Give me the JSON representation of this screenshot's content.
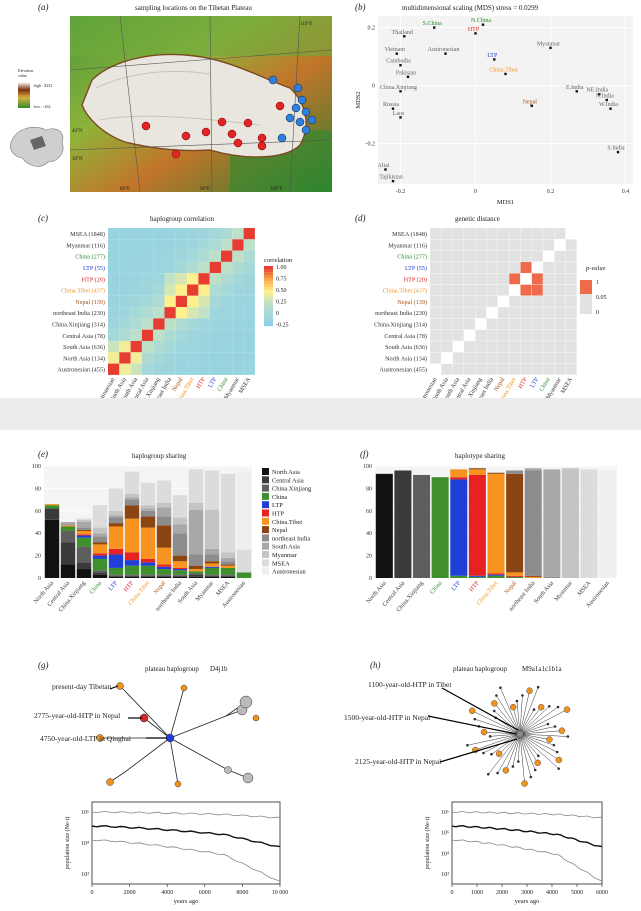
{
  "panels": {
    "a": {
      "label": "(a)",
      "title": "sampling locations on the Tibetan Plateau",
      "legend_title": "Elevation\nvalue",
      "legend_high": "high : 8252",
      "legend_low": "low : -432",
      "lon_ticks": [
        "80°E",
        "90°E",
        "100°E",
        "110°E"
      ],
      "lat_ticks": [
        "40°N",
        "30°N"
      ]
    },
    "b": {
      "label": "(b)",
      "title": "multidimensional scaling (MDS) stress = 0.0299",
      "xlabel": "MDS1",
      "ylabel": "MDS2",
      "chart_data": {
        "type": "scatter",
        "title": "multidimensional scaling (MDS) stress = 0.0299",
        "xlabel": "MDS1",
        "ylabel": "MDS2",
        "xlim": [
          -0.26,
          0.42
        ],
        "ylim": [
          -0.34,
          0.24
        ],
        "xticks": [
          "-0.2",
          "0",
          "0.2",
          "0.4"
        ],
        "yticks": [
          "0.2",
          "0",
          "-0.2"
        ],
        "points": [
          {
            "name": "N.China",
            "x": 0.02,
            "y": 0.21,
            "color": "#2e8b2e"
          },
          {
            "name": "S.China",
            "x": -0.11,
            "y": 0.2,
            "color": "#2e8b2e"
          },
          {
            "name": "HTP",
            "x": 0.0,
            "y": 0.18,
            "color": "#d62728"
          },
          {
            "name": "Thailand",
            "x": -0.19,
            "y": 0.17,
            "color": "#666"
          },
          {
            "name": "Vietnam",
            "x": -0.21,
            "y": 0.11,
            "color": "#666"
          },
          {
            "name": "Austronesian",
            "x": -0.08,
            "y": 0.11,
            "color": "#666"
          },
          {
            "name": "Cambodia",
            "x": -0.2,
            "y": 0.07,
            "color": "#666"
          },
          {
            "name": "Myanmar",
            "x": 0.2,
            "y": 0.13,
            "color": "#666"
          },
          {
            "name": "LTP",
            "x": 0.05,
            "y": 0.09,
            "color": "#1f3fd6"
          },
          {
            "name": "China.Tibet",
            "x": 0.08,
            "y": 0.04,
            "color": "#f0941e"
          },
          {
            "name": "Pakistan",
            "x": -0.18,
            "y": 0.03,
            "color": "#666"
          },
          {
            "name": "China.Xinjiang",
            "x": -0.2,
            "y": -0.02,
            "color": "#666"
          },
          {
            "name": "E.India",
            "x": 0.27,
            "y": -0.02,
            "color": "#666"
          },
          {
            "name": "NE.India",
            "x": 0.33,
            "y": -0.03,
            "color": "#666"
          },
          {
            "name": "N.India",
            "x": 0.35,
            "y": -0.05,
            "color": "#666"
          },
          {
            "name": "W.India",
            "x": 0.36,
            "y": -0.08,
            "color": "#666"
          },
          {
            "name": "Nepal",
            "x": 0.15,
            "y": -0.07,
            "color": "#a0521a"
          },
          {
            "name": "Russia",
            "x": -0.22,
            "y": -0.08,
            "color": "#666"
          },
          {
            "name": "Laos",
            "x": -0.2,
            "y": -0.11,
            "color": "#666"
          },
          {
            "name": "S.India",
            "x": 0.38,
            "y": -0.23,
            "color": "#666"
          },
          {
            "name": "Altai",
            "x": -0.24,
            "y": -0.29,
            "color": "#666"
          },
          {
            "name": "Tajikistan",
            "x": -0.22,
            "y": -0.33,
            "color": "#666"
          }
        ]
      }
    },
    "c": {
      "label": "(c)",
      "title": "haplogroup correlation",
      "legend_title": "correlation",
      "legend_ticks": [
        "1.00",
        "0.75",
        "0.50",
        "0.25",
        "0",
        "-0.25"
      ],
      "chart_data": {
        "type": "heatmap",
        "title": "haplogroup correlation",
        "rows": [
          "MSEA (1848)",
          "Myanmar (116)",
          "China (277)",
          "LTP (55)",
          "HTP (20)",
          "China.Tibet (437)",
          "Nepal (139)",
          "northeast India (230)",
          "China.Xinjiang (314)",
          "Central Asia (78)",
          "South Asia (636)",
          "North Asia (134)",
          "Austronesian (455)"
        ],
        "row_colors": [
          "#333",
          "#333",
          "#2e8b2e",
          "#1f3fd6",
          "#d62728",
          "#f0941e",
          "#a0521a",
          "#333",
          "#333",
          "#333",
          "#333",
          "#333",
          "#333"
        ],
        "cols": [
          "Austronesian",
          "North Asia",
          "South Asia",
          "Central Asia",
          "China.Xinjiang",
          "northeast India",
          "Nepal",
          "China.Tibet",
          "HTP",
          "LTP",
          "China",
          "Myanmar",
          "MSEA"
        ],
        "col_colors": [
          "#333",
          "#333",
          "#333",
          "#333",
          "#333",
          "#333",
          "#a0521a",
          "#f0941e",
          "#d62728",
          "#1f3fd6",
          "#2e8b2e",
          "#333",
          "#333"
        ]
      }
    },
    "d": {
      "label": "(d)",
      "title": "genetic distance",
      "legend_title": "p-value",
      "legend_ticks": [
        "1",
        "0.05",
        "0"
      ],
      "rows": [
        "MSEA (1848)",
        "Myanmar (116)",
        "China (277)",
        "LTP (55)",
        "HTP (20)",
        "China.Tibet (437)",
        "Nepal (139)",
        "northeast India (230)",
        "China.Xinjiang (314)",
        "Central Asia (78)",
        "South Asia (636)",
        "North Asia (134)",
        "Austronesian (455)"
      ],
      "row_colors": [
        "#333",
        "#333",
        "#2e8b2e",
        "#1f3fd6",
        "#d62728",
        "#f0941e",
        "#a0521a",
        "#333",
        "#333",
        "#333",
        "#333",
        "#333",
        "#333"
      ],
      "cols": [
        "Austronesian",
        "North Asia",
        "South Asia",
        "Central Asia",
        "China.Xinjiang",
        "northeast India",
        "Nepal",
        "China.Tibet",
        "HTP",
        "LTP",
        "China",
        "Myanmar",
        "MSEA"
      ],
      "col_colors": [
        "#333",
        "#333",
        "#333",
        "#333",
        "#333",
        "#333",
        "#a0521a",
        "#f0941e",
        "#d62728",
        "#1f3fd6",
        "#2e8b2e",
        "#333",
        "#333"
      ]
    },
    "e": {
      "label": "(e)",
      "title": "haplogroup sharing",
      "chart_data": {
        "type": "bar",
        "stacked": true,
        "title": "haplogroup sharing",
        "ylim": [
          0,
          100
        ],
        "yticks": [
          "100",
          "80",
          "60",
          "40",
          "20",
          "0"
        ],
        "categories": [
          "North Asia",
          "Central Asia",
          "China.Xinjiang",
          "China",
          "LTP",
          "HTP",
          "China.Tibet",
          "Nepal",
          "northeast India",
          "South Asia",
          "Myanmar",
          "MSEA",
          "Austronesian"
        ],
        "category_colors": [
          "#333",
          "#333",
          "#333",
          "#2e8b2e",
          "#1f3fd6",
          "#d62728",
          "#f0941e",
          "#a0521a",
          "#333",
          "#333",
          "#333",
          "#333",
          "#333"
        ],
        "series": [
          {
            "name": "North Asia",
            "color": "#111111",
            "values": [
              52,
              12,
              8,
              3,
              1,
              1,
              1,
              1,
              1,
              1,
              1,
              1,
              0
            ]
          },
          {
            "name": "Central Asia",
            "color": "#3a3a3a",
            "values": [
              10,
              20,
              6,
              2,
              1,
              1,
              1,
              1,
              1,
              2,
              1,
              1,
              0
            ]
          },
          {
            "name": "China.Xinjiang",
            "color": "#5e5e5e",
            "values": [
              0,
              10,
              14,
              2,
              1,
              1,
              1,
              1,
              1,
              1,
              1,
              1,
              0
            ]
          },
          {
            "name": "China",
            "color": "#3f8f2f",
            "values": [
              3,
              4,
              8,
              10,
              6,
              8,
              8,
              5,
              4,
              2,
              6,
              6,
              5
            ]
          },
          {
            "name": "LTP",
            "color": "#1f3fd6",
            "values": [
              0,
              0,
              2,
              3,
              12,
              5,
              3,
              2,
              1,
              0,
              1,
              0,
              0
            ]
          },
          {
            "name": "HTP",
            "color": "#e62222",
            "values": [
              0,
              0,
              1,
              2,
              5,
              7,
              3,
              2,
              1,
              0,
              0,
              0,
              0
            ]
          },
          {
            "name": "China.Tibet",
            "color": "#f7931e",
            "values": [
              1,
              1,
              3,
              8,
              20,
              30,
              28,
              15,
              6,
              2,
              3,
              2,
              0
            ]
          },
          {
            "name": "Nepal",
            "color": "#8b4513",
            "values": [
              0,
              0,
              1,
              2,
              3,
              12,
              10,
              20,
              5,
              3,
              2,
              1,
              0
            ]
          },
          {
            "name": "northeast India",
            "color": "#8c8c8c",
            "values": [
              0,
              1,
              2,
              5,
              5,
              5,
              5,
              8,
              20,
              10,
              6,
              3,
              0
            ]
          },
          {
            "name": "South Asia",
            "color": "#a8a8a8",
            "values": [
              0,
              2,
              5,
              3,
              2,
              2,
              2,
              8,
              8,
              40,
              5,
              3,
              0
            ]
          },
          {
            "name": "Myanmar",
            "color": "#c4c4c4",
            "values": [
              0,
              0,
              2,
              5,
              4,
              3,
              3,
              4,
              6,
              6,
              35,
              5,
              0
            ]
          },
          {
            "name": "MSEA",
            "color": "#dcdcdc",
            "values": [
              0,
              0,
              1,
              20,
              20,
              20,
              20,
              20,
              20,
              30,
              35,
              70,
              20
            ]
          },
          {
            "name": "Austronesian",
            "color": "#efefef",
            "values": [
              0,
              0,
              1,
              0,
              0,
              0,
              0,
              0,
              0,
              0,
              0,
              0,
              70
            ]
          }
        ]
      }
    },
    "f": {
      "label": "(f)",
      "title": "haplotype sharing",
      "chart_data": {
        "type": "bar",
        "stacked": true,
        "title": "haplotype sharing",
        "ylim": [
          0,
          100
        ],
        "yticks": [
          "100",
          "80",
          "60",
          "40",
          "20",
          "0"
        ],
        "categories": [
          "North Asia",
          "Central Asia",
          "China.Xinjiang",
          "China",
          "LTP",
          "HTP",
          "China.Tibet",
          "Nepal",
          "northeast India",
          "South Asia",
          "Myanmar",
          "MSEA",
          "Austronesian"
        ],
        "category_colors": [
          "#333",
          "#333",
          "#333",
          "#2e8b2e",
          "#1f3fd6",
          "#d62728",
          "#f0941e",
          "#a0521a",
          "#333",
          "#333",
          "#333",
          "#333",
          "#333"
        ],
        "series": [
          {
            "name": "North Asia",
            "color": "#111111",
            "values": [
              93,
              0,
              0,
              0,
              0,
              0,
              0,
              0,
              0,
              0,
              0,
              0,
              0
            ]
          },
          {
            "name": "Central Asia",
            "color": "#3a3a3a",
            "values": [
              0,
              96,
              0,
              0,
              0,
              0,
              0,
              0,
              0,
              0,
              0,
              0,
              0
            ]
          },
          {
            "name": "China.Xinjiang",
            "color": "#5e5e5e",
            "values": [
              0,
              0,
              92,
              0,
              0,
              0,
              0,
              0,
              0,
              0,
              0,
              0,
              0
            ]
          },
          {
            "name": "China",
            "color": "#3f8f2f",
            "values": [
              0,
              0,
              0,
              90,
              2,
              1,
              2,
              1,
              0,
              0,
              0,
              0,
              0
            ]
          },
          {
            "name": "LTP",
            "color": "#1f3fd6",
            "values": [
              0,
              0,
              0,
              0,
              86,
              1,
              1,
              0,
              0,
              0,
              0,
              0,
              0
            ]
          },
          {
            "name": "HTP",
            "color": "#e62222",
            "values": [
              0,
              0,
              0,
              0,
              2,
              90,
              1,
              1,
              0,
              0,
              0,
              0,
              0
            ]
          },
          {
            "name": "China.Tibet",
            "color": "#f7931e",
            "values": [
              0,
              0,
              0,
              0,
              7,
              5,
              89,
              3,
              1,
              0,
              0,
              0,
              0
            ]
          },
          {
            "name": "Nepal",
            "color": "#8b4513",
            "values": [
              0,
              0,
              0,
              0,
              0,
              1,
              1,
              88,
              1,
              0,
              0,
              0,
              0
            ]
          },
          {
            "name": "northeast India",
            "color": "#8c8c8c",
            "values": [
              0,
              0,
              0,
              0,
              0,
              0,
              0,
              3,
              94,
              1,
              0,
              0,
              0
            ]
          },
          {
            "name": "South Asia",
            "color": "#a8a8a8",
            "values": [
              0,
              0,
              0,
              0,
              0,
              0,
              0,
              0,
              2,
              96,
              0,
              0,
              0
            ]
          },
          {
            "name": "Myanmar",
            "color": "#c4c4c4",
            "values": [
              0,
              0,
              0,
              0,
              0,
              0,
              0,
              0,
              0,
              0,
              98,
              0,
              0
            ]
          },
          {
            "name": "MSEA",
            "color": "#dcdcdc",
            "values": [
              0,
              0,
              0,
              0,
              0,
              0,
              0,
              0,
              0,
              0,
              0,
              97,
              0
            ]
          },
          {
            "name": "Austronesian",
            "color": "#efefef",
            "values": [
              0,
              0,
              0,
              0,
              0,
              0,
              0,
              0,
              0,
              0,
              0,
              0,
              96
            ]
          }
        ]
      }
    },
    "g": {
      "label": "(g)",
      "title_a": "plateau haplogroup",
      "title_b": "D4j1b",
      "ann1": "present-day Tibetan",
      "ann2": "2775-year-old-HTP in Nepal",
      "ann3": "4750-year-old-LTP in Qinghai",
      "xlabel": "years ago",
      "ylabel": "population size (Ne·t)",
      "xticks": [
        "0",
        "2000",
        "4000",
        "6000",
        "8000",
        "10 000"
      ],
      "yticks": [
        "10⁵",
        "10⁴",
        "10³"
      ]
    },
    "h": {
      "label": "(h)",
      "title_a": "plateau haplogroup",
      "title_b": "M9a1a1c1b1a",
      "ann1": "1100-year-old-HTP in Tibet",
      "ann2": "1500-year-old-HTP in Nepal",
      "ann3": "2125-year-old-HTP in Nepal",
      "xlabel": "years ago",
      "ylabel": "population size (Ne·t)",
      "xticks": [
        "0",
        "1000",
        "2000",
        "3000",
        "4000",
        "5000",
        "6000"
      ],
      "yticks": [
        "10⁶",
        "10⁵",
        "10⁴",
        "10³"
      ]
    }
  },
  "colors": {
    "china": "#2e8b2e",
    "ltp": "#1f3fd6",
    "htp": "#d62728",
    "tibet": "#f0941e",
    "nepal": "#a0521a"
  }
}
